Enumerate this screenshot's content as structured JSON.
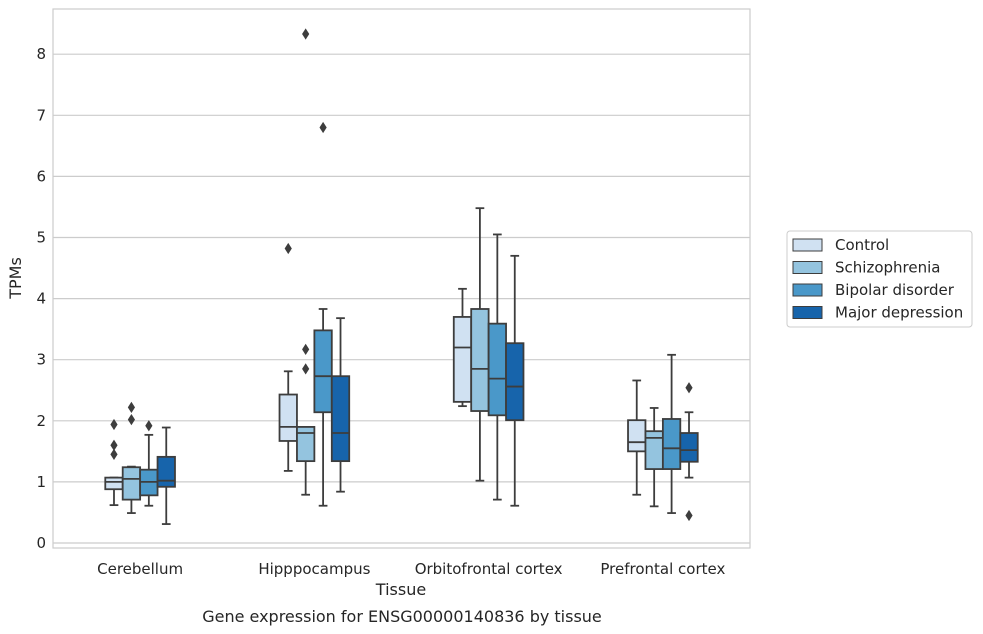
{
  "chart_data": {
    "type": "box",
    "title": "Gene expression for ENSG00000140836 by tissue",
    "xlabel": "Tissue",
    "ylabel": "TPMs",
    "ylim": [
      -0.08,
      8.75
    ],
    "yticks": [
      0,
      1,
      2,
      3,
      4,
      5,
      6,
      7,
      8
    ],
    "grid": "horizontal",
    "legend_position": "right",
    "categories": [
      "Cerebellum",
      "Hipppocampus",
      "Orbitofrontal cortex",
      "Prefrontal cortex"
    ],
    "series": [
      {
        "name": "Control",
        "color": "#d0e1f2",
        "boxes": [
          {
            "whislo": 0.62,
            "q1": 0.88,
            "med": 1.0,
            "q3": 1.07,
            "whishi": 1.07,
            "fliers": [
              1.45,
              1.6,
              1.94
            ]
          },
          {
            "whislo": 1.18,
            "q1": 1.67,
            "med": 1.9,
            "q3": 2.43,
            "whishi": 2.81,
            "fliers": [
              4.82
            ]
          },
          {
            "whislo": 2.24,
            "q1": 2.31,
            "med": 3.2,
            "q3": 3.7,
            "whishi": 4.16,
            "fliers": []
          },
          {
            "whislo": 0.79,
            "q1": 1.5,
            "med": 1.65,
            "q3": 2.01,
            "whishi": 2.66,
            "fliers": []
          }
        ]
      },
      {
        "name": "Schizophrenia",
        "color": "#94c4df",
        "boxes": [
          {
            "whislo": 0.49,
            "q1": 0.71,
            "med": 1.05,
            "q3": 1.24,
            "whishi": 1.25,
            "fliers": [
              2.02,
              2.22
            ]
          },
          {
            "whislo": 0.79,
            "q1": 1.34,
            "med": 1.8,
            "q3": 1.9,
            "whishi": 1.9,
            "fliers": [
              2.85,
              3.17,
              8.33
            ]
          },
          {
            "whislo": 1.02,
            "q1": 2.16,
            "med": 2.85,
            "q3": 3.83,
            "whishi": 5.48,
            "fliers": []
          },
          {
            "whislo": 0.6,
            "q1": 1.21,
            "med": 1.72,
            "q3": 1.83,
            "whishi": 2.21,
            "fliers": []
          }
        ]
      },
      {
        "name": "Bipolar disorder",
        "color": "#4a98c9",
        "boxes": [
          {
            "whislo": 0.61,
            "q1": 0.78,
            "med": 1.0,
            "q3": 1.2,
            "whishi": 1.77,
            "fliers": [
              1.92
            ]
          },
          {
            "whislo": 0.61,
            "q1": 2.14,
            "med": 2.73,
            "q3": 3.48,
            "whishi": 3.83,
            "fliers": [
              6.8
            ]
          },
          {
            "whislo": 0.71,
            "q1": 2.09,
            "med": 2.69,
            "q3": 3.59,
            "whishi": 5.05,
            "fliers": []
          },
          {
            "whislo": 0.49,
            "q1": 1.21,
            "med": 1.55,
            "q3": 2.03,
            "whishi": 3.08,
            "fliers": []
          }
        ]
      },
      {
        "name": "Major depression",
        "color": "#1764ab",
        "boxes": [
          {
            "whislo": 0.31,
            "q1": 0.92,
            "med": 1.02,
            "q3": 1.41,
            "whishi": 1.89,
            "fliers": []
          },
          {
            "whislo": 0.84,
            "q1": 1.34,
            "med": 1.8,
            "q3": 2.73,
            "whishi": 3.68,
            "fliers": []
          },
          {
            "whislo": 0.61,
            "q1": 2.01,
            "med": 2.56,
            "q3": 3.27,
            "whishi": 4.7,
            "fliers": []
          },
          {
            "whislo": 1.07,
            "q1": 1.33,
            "med": 1.52,
            "q3": 1.8,
            "whishi": 2.14,
            "fliers": [
              0.45,
              2.54
            ]
          }
        ]
      }
    ]
  }
}
